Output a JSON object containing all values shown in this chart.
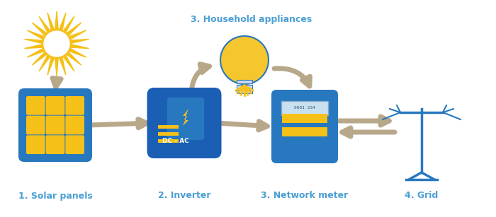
{
  "bg_color": "#ffffff",
  "arrow_color": "#b8a88a",
  "blue_dark": "#1a5fb4",
  "blue_light": "#2878c0",
  "blue_icon_bg": "#3a6fc8",
  "gold_color": "#f5c018",
  "dark_gold": "#d4a000",
  "label_color": "#4a9fd4",
  "sun_color": "#f5c018",
  "sun_ray_color": "#e8a800",
  "labels": {
    "solar": "1. Solar panels",
    "inverter": "2. Inverter",
    "meter": "3. Network meter",
    "grid": "4. Grid",
    "household": "3. Household appliances"
  },
  "figsize": [
    7.0,
    3.07
  ],
  "dpi": 100
}
